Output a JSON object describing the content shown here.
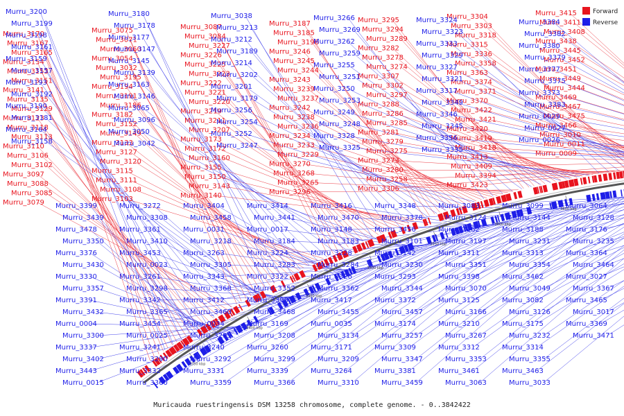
{
  "caption": "Muricauda ruestringensis DSM 13258 chromosome, complete genome. - 0..3842422",
  "legend": [
    {
      "label": "Forward",
      "color": "#e8141e"
    },
    {
      "label": "Reverse",
      "color": "#1e1ee8"
    }
  ],
  "colors": {
    "forward": "#e8141e",
    "reverse": "#1e1ee8",
    "backbone": "#555555"
  },
  "ticks": [
    "3350 kbp",
    "3400 kbp",
    "3450 kbp",
    "3500 kbp",
    "3550 kbp",
    "3600 kbp",
    "3650 kbp",
    "3700 kbp",
    "3750 kbp",
    "3800 kbp"
  ],
  "labels_outer_forward": [
    "Murru_3170",
    "Murru_3167",
    "Murru_3165",
    "Murru_3154",
    "Murru_3153",
    "Murru_3151",
    "Murru_3141",
    "Murru_3135",
    "Murru_3129",
    "Murru_3123",
    "Murru_3118",
    "Murru_3113",
    "Murru_3110",
    "Murru_3106",
    "Murru_3102",
    "Murru_3097",
    "Murru_3088",
    "Murru_3085",
    "Murru_3079",
    "Murru_3075",
    "Murru_3071",
    "Murru_3060",
    "Murru_3054",
    "Murru_3032",
    "Murru_3195",
    "Murru_3194",
    "Murru_3191",
    "Murru_3186",
    "Murru_3182",
    "Murru_3152",
    "Murru_3149",
    "Murru_3133",
    "Murru_3127",
    "Murru_3120",
    "Murru_3115",
    "Murru_3111",
    "Murru_3108",
    "Murru_3103",
    "Murru_3087",
    "Murru_3084",
    "Murru_3227",
    "Murru_3226",
    "Murru_3225",
    "Murru_3223",
    "Murru_3222",
    "Murru_3221",
    "Murru_3220",
    "Murru_3219",
    "Murru_3211",
    "Murru_3207",
    "Murru_3173",
    "Murru_3172",
    "Murru_3160",
    "Murru_3155",
    "Murru_3150",
    "Murru_3143",
    "Murru_3140",
    "Murru_3187",
    "Murru_3185",
    "Murru_3196",
    "Murru_3246",
    "Murru_3245",
    "Murru_3244",
    "Murru_3243",
    "Murru_3239",
    "Murru_3237",
    "Murru_3242",
    "Murru_3238",
    "Murru_3236",
    "Murru_3234",
    "Murru_3233",
    "Murru_3229",
    "Murru_3270",
    "Murru_3268",
    "Murru_3265",
    "Murru_3296",
    "Murru_3295",
    "Murru_3294",
    "Murru_3289",
    "Murru_3282",
    "Murru_3278",
    "Murru_3274",
    "Murru_3307",
    "Murru_3302",
    "Murru_3297",
    "Murru_3288",
    "Murru_3286",
    "Murru_3285",
    "Murru_3281",
    "Murru_3279",
    "Murru_3275",
    "Murru_3273",
    "Murru_3280",
    "Murru_3258",
    "Murru_3306",
    "Murru_3304",
    "Murru_3303",
    "Murru_3318",
    "Murru_3315",
    "Murru_3336",
    "Murru_3358",
    "Murru_3363",
    "Murru_3374",
    "Murru_3371",
    "Murru_3370",
    "Murru_3422",
    "Murru_3421",
    "Murru_3420",
    "Murru_3419",
    "Murru_3418",
    "Murru_3413",
    "Murru_3409",
    "Murru_3394",
    "Murru_3423",
    "Murru_3415",
    "Murru_3411",
    "Murru_3408",
    "Murru_3438",
    "Murru_3445",
    "Murru_3452",
    "Murru_3451",
    "Murru_3449",
    "Murru_3444",
    "Murru_3469",
    "Murru_3467",
    "Murru_3475",
    "Murru_3466",
    "Murru_3010",
    "Murru_0011",
    "Murru_0009"
  ],
  "labels_outer_reverse": [
    "Murru_3200",
    "Murru_3199",
    "Murru_3198",
    "Murru_3161",
    "Murru_3159",
    "Murru_3157",
    "Murru_3193",
    "Murru_3192",
    "Murru_3190",
    "Murru_3181",
    "Murru_3164",
    "Murru_3158",
    "Murru_3180",
    "Murru_3178",
    "Murru_3177",
    "Murru_3147",
    "Murru_3145",
    "Murru_3139",
    "Murru_3163",
    "Murru_3146",
    "Murru_3065",
    "Murru_3096",
    "Murru_3050",
    "Murru_3042",
    "Murru_3038",
    "Murru_3213",
    "Murru_3212",
    "Murru_3189",
    "Murru_3214",
    "Murru_3202",
    "Murru_3201",
    "Murru_3179",
    "Murru_3256",
    "Murru_3254",
    "Murru_3252",
    "Murru_3247",
    "Murru_3266",
    "Murru_3269",
    "Murru_3262",
    "Murru_3259",
    "Murru_3255",
    "Murru_3251",
    "Murru_3250",
    "Murru_3253",
    "Murru_3249",
    "Murru_3248",
    "Murru_3328",
    "Murru_3325",
    "Murru_3324",
    "Murru_3323",
    "Murru_3333",
    "Murru_3329",
    "Murru_3327",
    "Murru_3321",
    "Murru_3317",
    "Murru_3349",
    "Murru_3346",
    "Murru_3345",
    "Murru_3356",
    "Murru_3335",
    "Murru_3384",
    "Murru_3382",
    "Murru_3380",
    "Murru_3379",
    "Murru_3377",
    "Murru_3375",
    "Murru_3373",
    "Murru_3383",
    "Murru_0029",
    "Murru_0027",
    "Murru_0026"
  ],
  "labels_inner": [
    "Murru_3399",
    "Murru_3439",
    "Murru_3478",
    "Murru_3350",
    "Murru_3376",
    "Murru_3430",
    "Murru_3330",
    "Murru_3357",
    "Murru_3391",
    "Murru_3432",
    "Murru_0004",
    "Murru_3300",
    "Murru_3337",
    "Murru_3402",
    "Murru_3443",
    "Murru_0015",
    "Murru_3272",
    "Murru_3308",
    "Murru_3361",
    "Murru_3410",
    "Murru_3453",
    "Murru_0023",
    "Murru_3261",
    "Murru_3298",
    "Murru_3342",
    "Murru_3365",
    "Murru_3454",
    "Murru_0025",
    "Murru_3241",
    "Murru_3290",
    "Murru_3332",
    "Murru_3360",
    "Murru_3404",
    "Murru_3458",
    "Murru_0031",
    "Murru_3218",
    "Murru_3263",
    "Murru_3305",
    "Murru_3343",
    "Murru_3368",
    "Murru_3412",
    "Murru_3460",
    "Murru_0034",
    "Murru_3205",
    "Murru_3240",
    "Murru_3292",
    "Murru_3331",
    "Murru_3359",
    "Murru_3414",
    "Murru_3441",
    "Murru_0017",
    "Murru_3184",
    "Murru_3224",
    "Murru_3283",
    "Murru_3322",
    "Murru_3352",
    "Murru_3393",
    "Murru_3468",
    "Murru_3169",
    "Murru_3208",
    "Murru_3260",
    "Murru_3299",
    "Murru_3339",
    "Murru_3366",
    "Murru_3416",
    "Murru_3470",
    "Murru_3148",
    "Murru_3183",
    "Murru_3228",
    "Murru_3284",
    "Murru_3326",
    "Murru_3362",
    "Murru_3417",
    "Murru_3455",
    "Murru_0035",
    "Murru_3134",
    "Murru_3171",
    "Murru_3209",
    "Murru_3264",
    "Murru_3310",
    "Murru_3348",
    "Murru_3378",
    "Murru_3456",
    "Murru_3101",
    "Murru_3142",
    "Murru_3230",
    "Murru_3293",
    "Murru_3344",
    "Murru_3372",
    "Murru_3457",
    "Murru_3174",
    "Murru_3257",
    "Murru_3309",
    "Murru_3347",
    "Murru_3381",
    "Murru_3459",
    "Murru_3083",
    "Murru_3124",
    "Murru_3162",
    "Murru_3197",
    "Murru_3311",
    "Murru_3351",
    "Murru_3398",
    "Murru_3070",
    "Murru_3125",
    "Murru_3166",
    "Murru_3210",
    "Murru_3267",
    "Murru_3312",
    "Murru_3353",
    "Murru_3461",
    "Murru_3063",
    "Murru_3099",
    "Murru_3144",
    "Murru_3188",
    "Murru_3231",
    "Murru_3313",
    "Murru_3354",
    "Murru_3462",
    "Murru_3049",
    "Murru_3082",
    "Murru_3126",
    "Murru_3175",
    "Murru_3232",
    "Murru_3314",
    "Murru_3355",
    "Murru_3463",
    "Murru_3033",
    "Murru_3064",
    "Murru_3128",
    "Murru_3176",
    "Murru_3235",
    "Murru_3364",
    "Murru_3464",
    "Murru_3027",
    "Murru_3367",
    "Murru_3465",
    "Murru_3017",
    "Murru_3369",
    "Murru_3471"
  ]
}
